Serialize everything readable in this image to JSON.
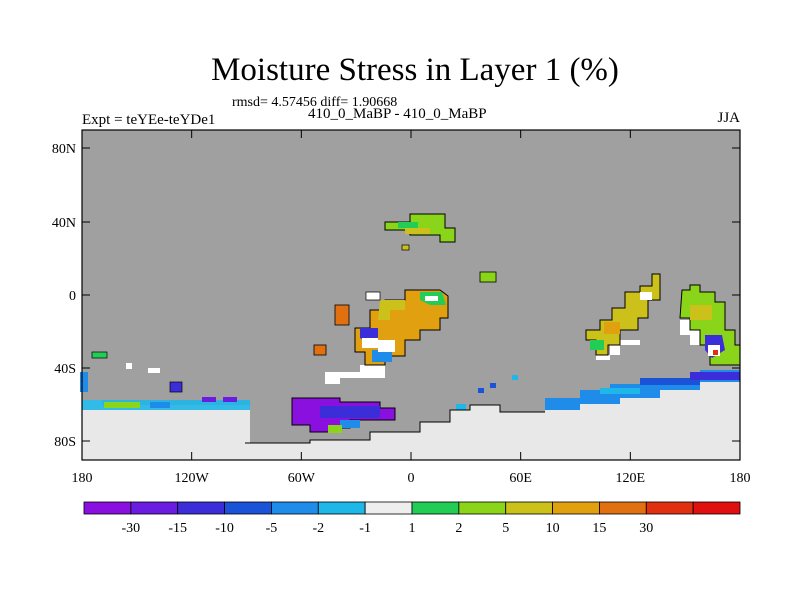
{
  "title": "Moisture Stress in Layer 1 (%)",
  "stats": "rmsd= 4.57456 diff= 1.90668",
  "experiment": "Expt = teYEe-teYDe1",
  "runs": "410_0_MaBP - 410_0_MaBP",
  "season": "JJA",
  "colors": {
    "land_mask": "#a0a0a0",
    "ocean_fill": "#e8e8e8",
    "coast_line": "#000000"
  },
  "map": {
    "lat_labels": [
      "80N",
      "40N",
      "0",
      "40S",
      "80S"
    ],
    "lon_labels": [
      "180",
      "120W",
      "60W",
      "0",
      "60E",
      "120E",
      "180"
    ]
  },
  "colorbar": {
    "colors": [
      "#8a10e0",
      "#6a1ce0",
      "#3b2ed8",
      "#1a52d8",
      "#1e8ce8",
      "#1fb6e8",
      "#eeeeee",
      "#22cc55",
      "#8ad41a",
      "#ccc01a",
      "#e0a010",
      "#e07010",
      "#e03010",
      "#e01010"
    ],
    "labels": [
      "-30",
      "-15",
      "-10",
      "-5",
      "-2",
      "-1",
      "1",
      "2",
      "5",
      "10",
      "15",
      "30"
    ]
  }
}
